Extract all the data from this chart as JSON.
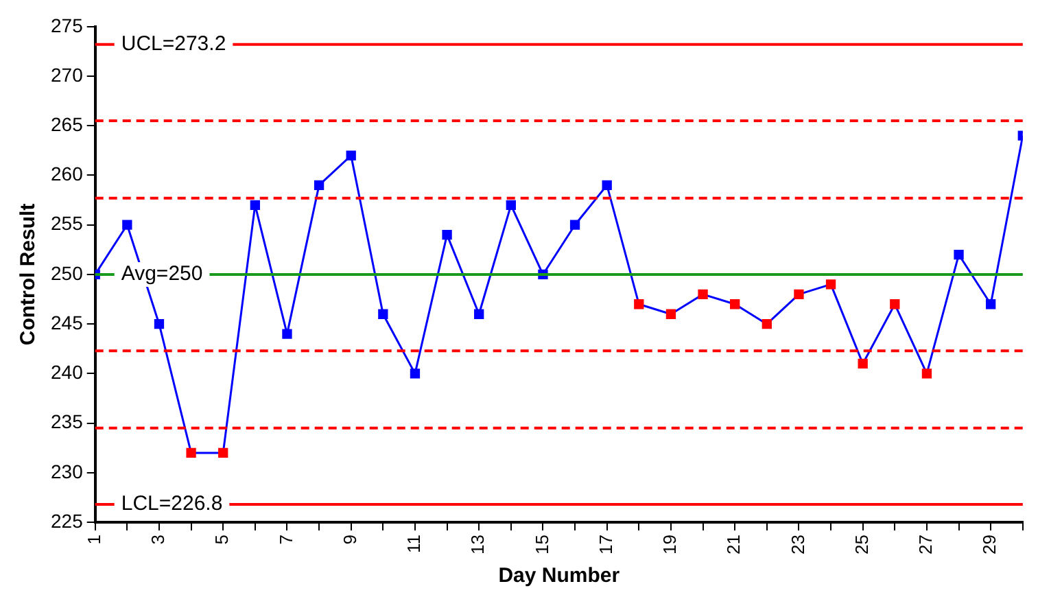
{
  "chart_data": {
    "type": "line",
    "xlabel": "Day Number",
    "ylabel": "Control Result",
    "x": [
      1,
      2,
      3,
      4,
      5,
      6,
      7,
      8,
      9,
      10,
      11,
      12,
      13,
      14,
      15,
      16,
      17,
      18,
      19,
      20,
      21,
      22,
      23,
      24,
      25,
      26,
      27,
      28,
      29,
      30
    ],
    "series": [
      {
        "color": "#0000ff",
        "colors": [
          "#0000ff",
          "#0000ff",
          "#0000ff",
          "#ff0000",
          "#ff0000",
          "#0000ff",
          "#0000ff",
          "#0000ff",
          "#0000ff",
          "#0000ff",
          "#0000ff",
          "#0000ff",
          "#0000ff",
          "#0000ff",
          "#0000ff",
          "#0000ff",
          "#0000ff",
          "#ff0000",
          "#ff0000",
          "#ff0000",
          "#ff0000",
          "#ff0000",
          "#ff0000",
          "#ff0000",
          "#ff0000",
          "#ff0000",
          "#ff0000",
          "#0000ff",
          "#0000ff",
          "#0000ff"
        ],
        "values": [
          250,
          255,
          245,
          232,
          232,
          257,
          244,
          259,
          262,
          246,
          240,
          254,
          246,
          257,
          250,
          255,
          259,
          247,
          246,
          248,
          247,
          245,
          248,
          249,
          241,
          247,
          240,
          252,
          247,
          264
        ]
      }
    ],
    "xlim": [
      1,
      30
    ],
    "xticks": [
      1,
      {
        "value": 2,
        "label": null
      },
      3,
      {
        "value": 4,
        "label": null
      },
      5,
      {
        "value": 6,
        "label": null
      },
      7,
      {
        "value": 8,
        "label": null
      },
      9,
      {
        "value": 10,
        "label": null
      },
      11,
      {
        "value": 12,
        "label": null
      },
      13,
      {
        "value": 14,
        "label": null
      },
      15,
      {
        "value": 16,
        "label": null
      },
      17,
      {
        "value": 18,
        "label": null
      },
      19,
      {
        "value": 20,
        "label": null
      },
      21,
      {
        "value": 22,
        "label": null
      },
      23,
      {
        "value": 24,
        "label": null
      },
      25,
      {
        "value": 26,
        "label": null
      },
      27,
      {
        "value": 28,
        "label": null
      },
      29,
      {
        "value": 30,
        "label": null
      }
    ],
    "ylim": [
      225,
      275
    ],
    "yticks": [
      225,
      230,
      235,
      240,
      245,
      250,
      255,
      260,
      265,
      270,
      275
    ],
    "ref_lines": [
      {
        "axis": "y",
        "value": 273.2,
        "label": "UCL=273.2",
        "color": "#ff0000",
        "line_style": "solid"
      },
      {
        "axis": "y",
        "value": 265.5,
        "label": null,
        "color": "#ff0000",
        "line_style": "dashed"
      },
      {
        "axis": "y",
        "value": 257.7,
        "label": null,
        "color": "#ff0000",
        "line_style": "dashed"
      },
      {
        "axis": "y",
        "value": 250,
        "label": "Avg=250",
        "color": "#1a9a1a",
        "line_style": "solid"
      },
      {
        "axis": "y",
        "value": 242.3,
        "label": null,
        "color": "#ff0000",
        "line_style": "dashed"
      },
      {
        "axis": "y",
        "value": 234.5,
        "label": null,
        "color": "#ff0000",
        "line_style": "dashed"
      },
      {
        "axis": "y",
        "value": 226.8,
        "label": "LCL=226.8",
        "color": "#ff0000",
        "line_style": "solid"
      }
    ],
    "grid": false,
    "legend": false,
    "marker": "square",
    "line_style": "solid"
  }
}
